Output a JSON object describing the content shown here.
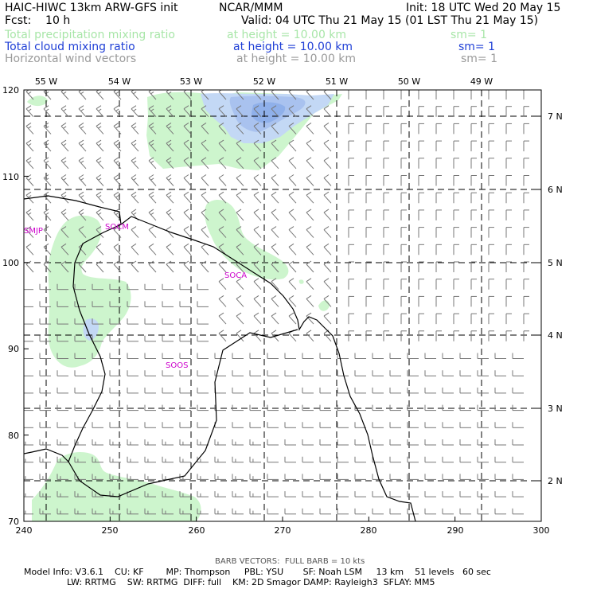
{
  "header": {
    "line1_left": "HAIC-HIWC 13km ARW-GFS init",
    "line1_mid": "NCAR/MMM",
    "line1_right": "Init: 18 UTC Wed 20 May 15",
    "line2_left": "Fcst:    10 h",
    "line2_right": "Valid: 04 UTC Thu 21 May 15 (01 LST Thu 21 May 15)",
    "fields": [
      {
        "name": "Total precipitation mixing ratio",
        "height": "at height = 10.00 km",
        "sm": "sm= 1",
        "color": "#a8e6a8"
      },
      {
        "name": "Total cloud mixing ratio",
        "height": "at height = 10.00 km",
        "sm": "sm= 1",
        "color": "#1f3fd6"
      },
      {
        "name": "Horizontal wind vectors",
        "height": "at height = 10.00 km",
        "sm": "sm= 1",
        "color": "#9a9a9a"
      }
    ]
  },
  "axes": {
    "x_ticks": [
      "240",
      "250",
      "260",
      "270",
      "280",
      "290",
      "300"
    ],
    "y_ticks": [
      "120",
      "110",
      "100",
      "90",
      "80",
      "70"
    ],
    "lon_labels": [
      "55 W",
      "54 W",
      "53 W",
      "52 W",
      "51 W",
      "50 W",
      "49 W"
    ],
    "lat_labels": [
      "7 N",
      "6 N",
      "5 N",
      "4 N",
      "3 N",
      "2 N"
    ]
  },
  "stations": [
    "SMJP",
    "SOCM",
    "SOCA",
    "SOOS"
  ],
  "colors": {
    "precip": "#cdf5cd",
    "cloud_light": "#c3d8f5",
    "cloud_mid": "#a9c2ef",
    "cloud_dark": "#8fb0ea",
    "coast": "#000000",
    "barb": "#777777"
  },
  "footer": {
    "barb_note": "BARB VECTORS:  FULL BARB = 10 kts",
    "model_line1": "Model Info: V3.6.1    CU: KF        MP: Thompson     PBL: YSU       SF: Noah LSM     13 km    51 levels   60 sec",
    "model_line2": "LW: RRTMG    SW: RRTMG  DIFF: full    KM: 2D Smagor DAMP: Rayleigh3  SFLAY: MM5"
  }
}
